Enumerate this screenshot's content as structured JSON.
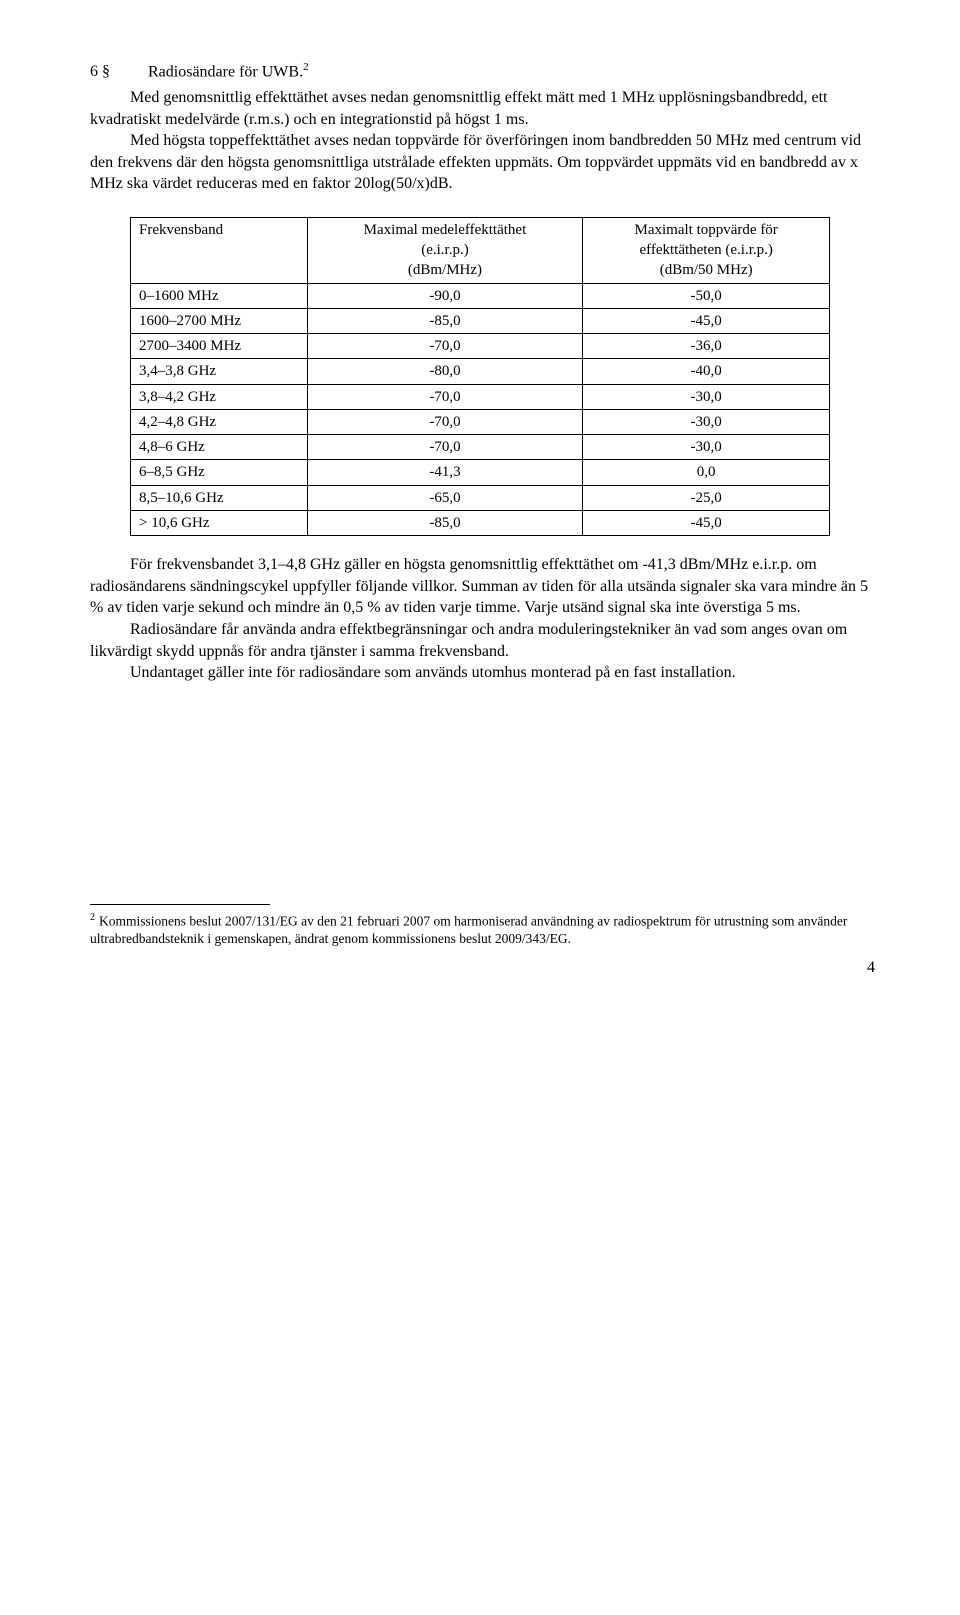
{
  "heading": {
    "number": "6 §",
    "title_before_sup": "Radiosändare för UWB.",
    "sup": "2"
  },
  "intro": [
    "Med genomsnittlig effekttäthet avses nedan genomsnittlig effekt mätt med 1 MHz upplösningsbandbredd, ett kvadratiskt medelvärde (r.m.s.) och en integrationstid på högst 1 ms.",
    "Med högsta toppeffekttäthet avses nedan toppvärde för överföringen inom bandbredden 50 MHz med centrum vid den frekvens där den högsta genomsnittliga utstrålade effekten uppmäts. Om toppvärdet uppmäts vid en bandbredd av x MHz ska värdet reduceras med en faktor 20log(50/x)dB."
  ],
  "table": {
    "headers": {
      "band": "Frekvensband",
      "mean_l1": "Maximal medeleffekttäthet",
      "mean_l2": "(e.i.r.p.)",
      "mean_l3": "(dBm/MHz)",
      "peak_l1": "Maximalt toppvärde för",
      "peak_l2": "effekttätheten (e.i.r.p.)",
      "peak_l3": "(dBm/50 MHz)"
    },
    "rows": [
      {
        "band": "0–1600 MHz",
        "mean": "-90,0",
        "peak": "-50,0"
      },
      {
        "band": "1600–2700 MHz",
        "mean": "-85,0",
        "peak": "-45,0"
      },
      {
        "band": "2700–3400 MHz",
        "mean": "-70,0",
        "peak": "-36,0"
      },
      {
        "band": "3,4–3,8 GHz",
        "mean": "-80,0",
        "peak": "-40,0"
      },
      {
        "band": "3,8–4,2 GHz",
        "mean": "-70,0",
        "peak": "-30,0"
      },
      {
        "band": "4,2–4,8 GHz",
        "mean": "-70,0",
        "peak": "-30,0"
      },
      {
        "band": "4,8–6 GHz",
        "mean": "-70,0",
        "peak": "-30,0"
      },
      {
        "band": "6–8,5 GHz",
        "mean": "-41,3",
        "peak": "0,0"
      },
      {
        "band": "8,5–10,6 GHz",
        "mean": "-65,0",
        "peak": "-25,0"
      },
      {
        "band": "> 10,6 GHz",
        "mean": "-85,0",
        "peak": "-45,0"
      }
    ]
  },
  "body_after": [
    "För frekvensbandet 3,1–4,8 GHz gäller en högsta genomsnittlig effekttäthet om -41,3 dBm/MHz e.i.r.p. om radiosändarens sändningscykel uppfyller följande villkor. Summan av tiden för alla utsända signaler ska vara mindre än 5 % av tiden varje sekund och mindre än 0,5 % av tiden varje timme. Varje utsänd signal ska inte överstiga 5 ms.",
    "Radiosändare får använda andra effektbegränsningar och andra moduleringstekniker än vad som anges ovan om likvärdigt skydd uppnås för andra tjänster i samma frekvensband.",
    "Undantaget gäller inte för radiosändare som används utomhus monterad på en fast installation."
  ],
  "footnote": {
    "num": "2",
    "text": "Kommissionens beslut 2007/131/EG av den 21 februari 2007 om harmoniserad användning av radiospektrum för utrustning som använder ultrabredbandsteknik i gemenskapen, ändrat genom kommissionens beslut 2009/343/EG."
  },
  "page_number": "4"
}
